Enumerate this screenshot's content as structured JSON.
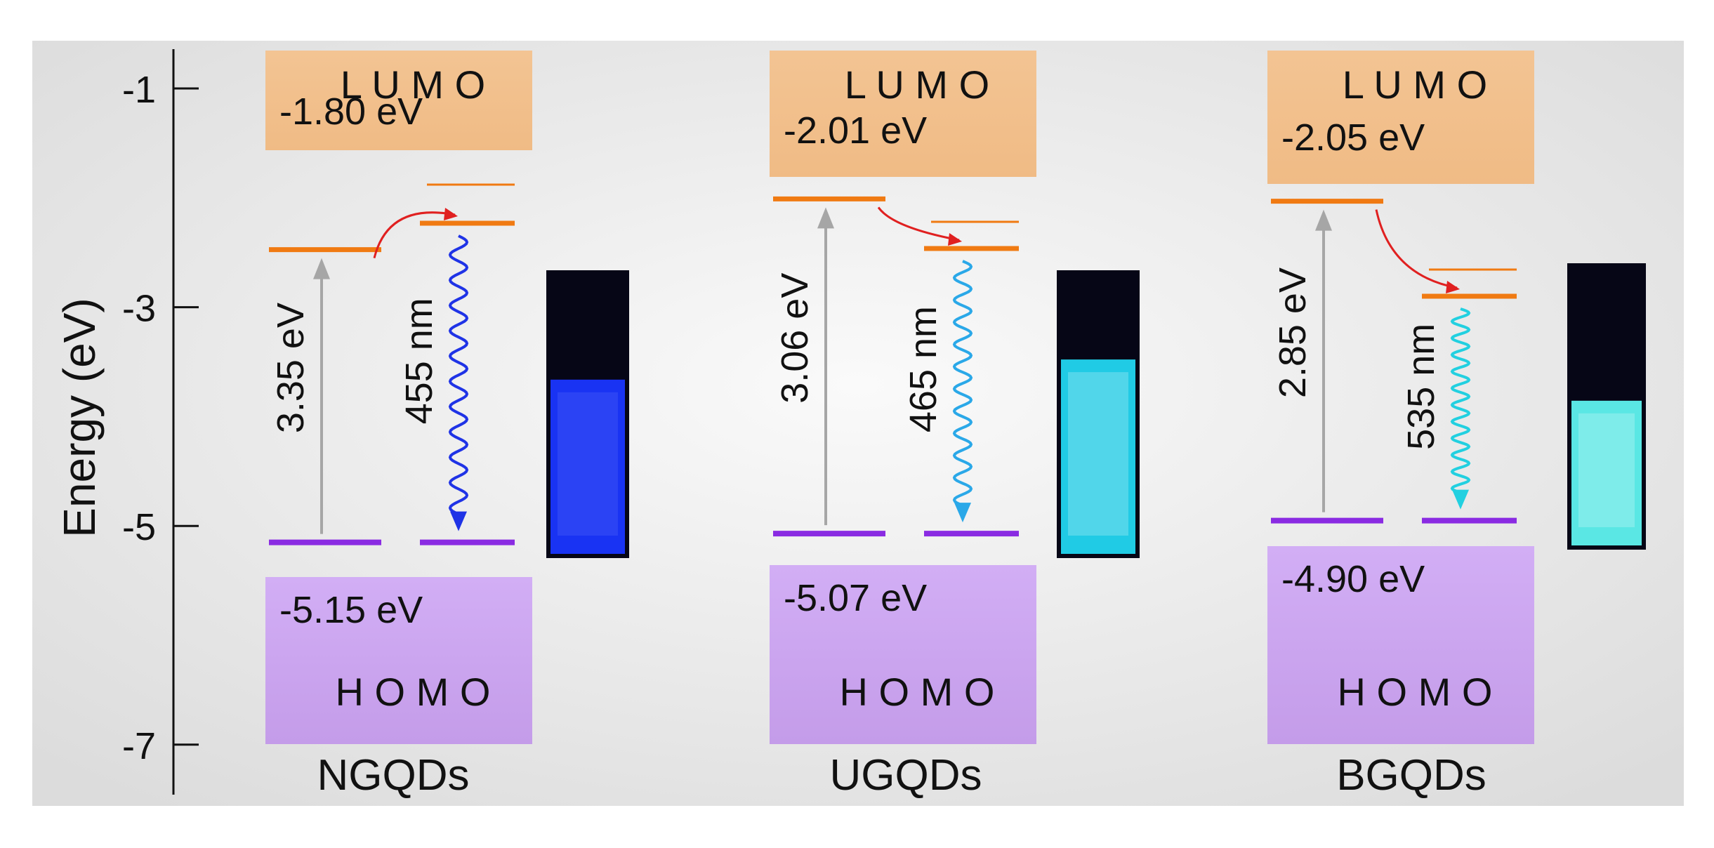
{
  "axis": {
    "label": "Energy (eV)",
    "ticks": [
      {
        "value": -1,
        "label": "-1"
      },
      {
        "value": -3,
        "label": "-3"
      },
      {
        "value": -5,
        "label": "-5"
      },
      {
        "value": -7,
        "label": "-7"
      }
    ]
  },
  "labels": {
    "lumo": "L U M O",
    "homo": "H O M O"
  },
  "panels": [
    {
      "name": "NGQDs",
      "lumo_ev": -1.8,
      "lumo_label": "-1.80 eV",
      "homo_ev": -5.15,
      "homo_label": "-5.15 eV",
      "gap_label": "3.35 eV",
      "emission_label": "455 nm",
      "emission_color": "#1f33e6",
      "vial_color": "#1a36ff"
    },
    {
      "name": "UGQDs",
      "lumo_ev": -2.01,
      "lumo_label": "-2.01 eV",
      "homo_ev": -5.07,
      "homo_label": "-5.07 eV",
      "gap_label": "3.06 eV",
      "emission_label": "465 nm",
      "emission_color": "#2aa8e8",
      "vial_color": "#22d6f0"
    },
    {
      "name": "BGQDs",
      "lumo_ev": -2.05,
      "lumo_label": "-2.05 eV",
      "homo_ev": -4.9,
      "homo_label": "-4.90 eV",
      "gap_label": "2.85 eV",
      "emission_label": "535 nm",
      "emission_color": "#22d0e0",
      "vial_color": "#5ff3ef"
    }
  ],
  "colors": {
    "lumo_box": "#f4c090",
    "homo_box": "#c8a2ee",
    "lumo_level": "#f07a12",
    "homo_level": "#8a2be2",
    "relax_arrow": "#e02020",
    "absorb_arrow": "#a6a6a6"
  }
}
